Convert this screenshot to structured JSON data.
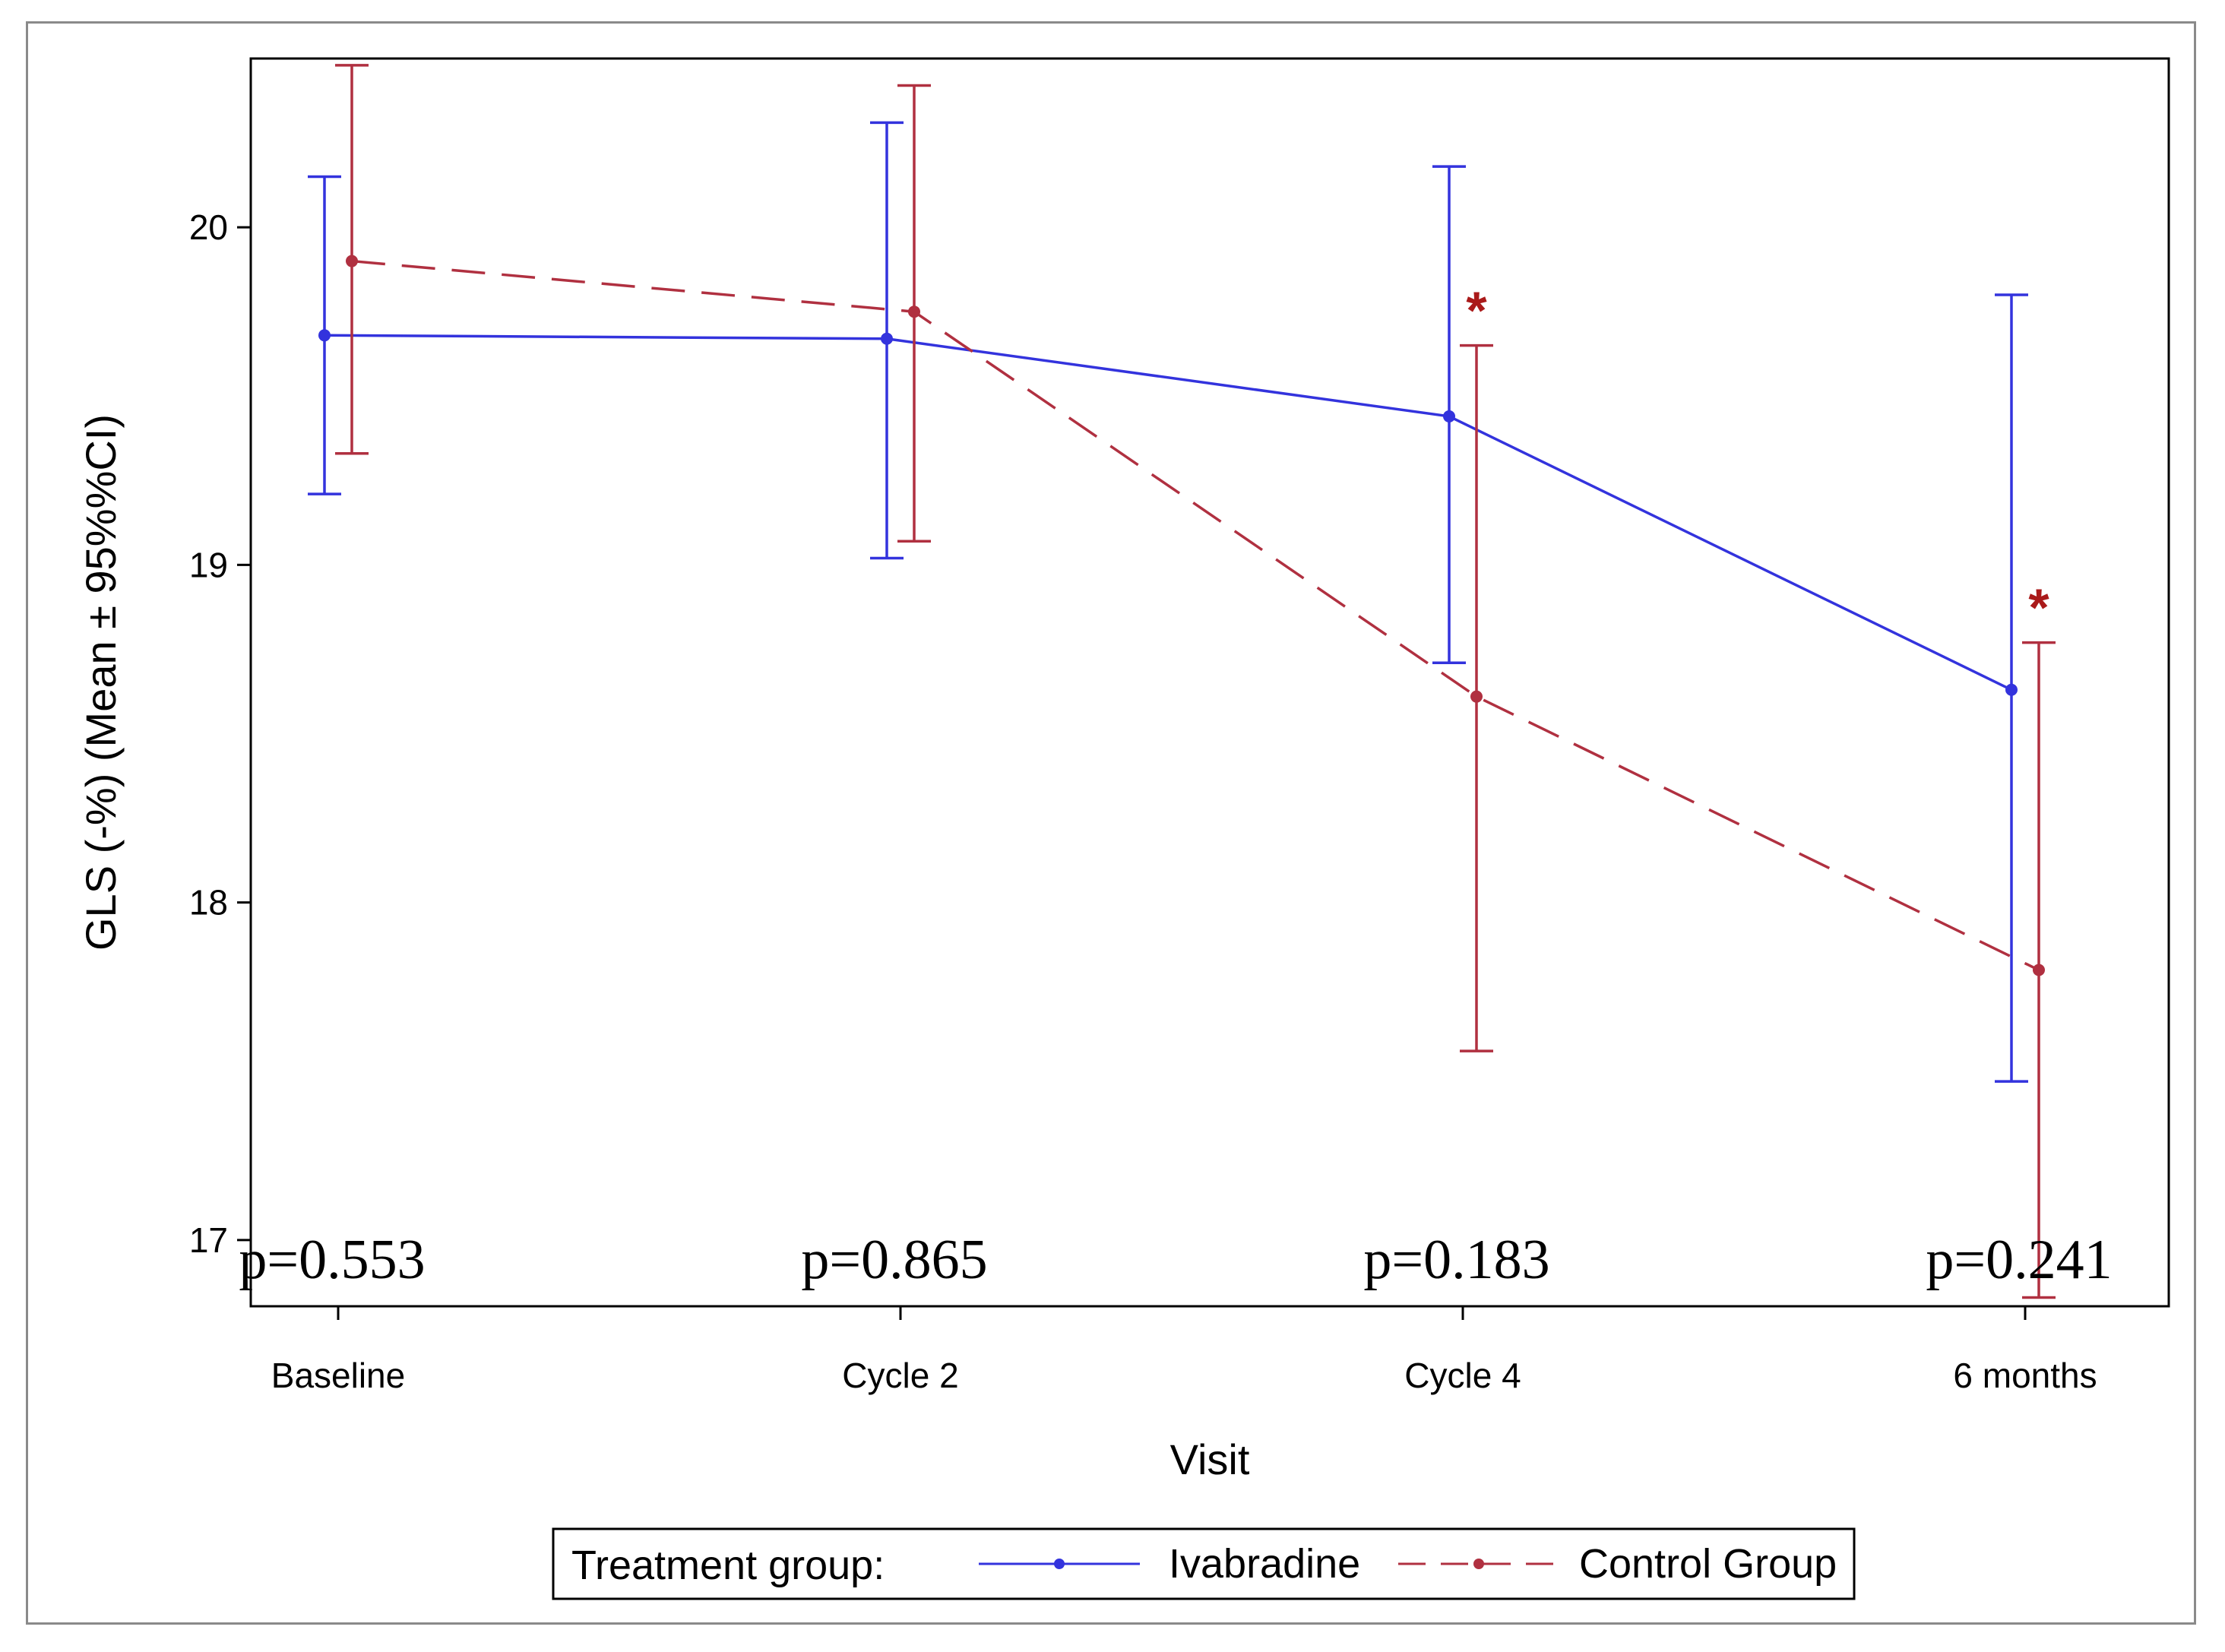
{
  "chart_data": {
    "type": "line",
    "title": "",
    "xlabel": "Visit",
    "ylabel": "GLS (-%) (Mean ± 95%%CI)",
    "categories": [
      "Baseline",
      "Cycle 2",
      "Cycle 4",
      "6 months"
    ],
    "ylim": [
      16.8,
      20.5
    ],
    "yticks": [
      17,
      18,
      19,
      20
    ],
    "series": [
      {
        "name": "Ivabradine",
        "color": "#3333dd",
        "style": "solid",
        "values": [
          19.68,
          19.67,
          19.44,
          18.63
        ],
        "ci_low": [
          19.21,
          19.02,
          18.71,
          17.47
        ],
        "ci_high": [
          20.15,
          20.31,
          20.18,
          19.8
        ]
      },
      {
        "name": "Control Group",
        "color": "#b03040",
        "style": "dashed",
        "values": [
          19.9,
          19.75,
          18.61,
          17.8
        ],
        "ci_low": [
          19.33,
          19.07,
          17.56,
          16.83
        ],
        "ci_high": [
          20.48,
          20.42,
          19.65,
          18.77
        ]
      }
    ],
    "p_values": [
      "p=0.553",
      "p=0.865",
      "p=0.183",
      "p=0.241"
    ],
    "significance_marks": [
      {
        "category": "Cycle 4",
        "symbol": "*"
      },
      {
        "category": "6 months",
        "symbol": "*"
      }
    ],
    "legend": {
      "title": "Treatment group:",
      "entries": [
        "Ivabradine",
        "Control Group"
      ],
      "position": "bottom"
    }
  }
}
